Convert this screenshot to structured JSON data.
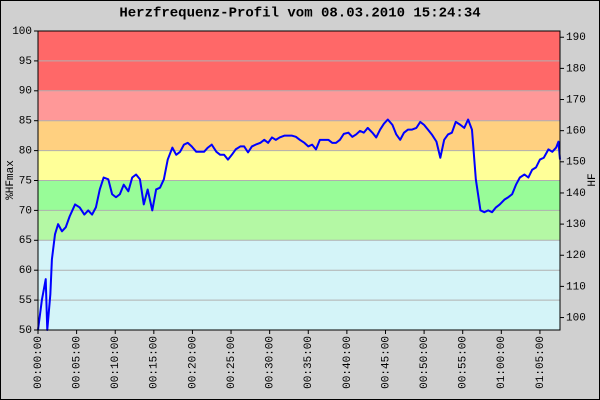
{
  "chart_data": {
    "type": "line",
    "title": "Herzfrequenz-Profil vom 08.03.2010 15:24:34",
    "y_label": "%HFmax",
    "y2_label": "HF",
    "x": [
      0,
      0.5,
      1.0,
      1.2,
      1.6,
      1.8,
      2.2,
      2.6,
      3.1,
      3.6,
      4.1,
      4.8,
      5.4,
      6.0,
      6.5,
      7.0,
      7.5,
      8.0,
      8.5,
      9.1,
      9.6,
      10.1,
      10.6,
      11.1,
      11.7,
      12.2,
      12.7,
      13.2,
      13.7,
      14.2,
      14.8,
      15.3,
      15.8,
      16.3,
      16.8,
      17.4,
      17.9,
      18.4,
      18.9,
      19.4,
      19.9,
      20.5,
      21.0,
      21.5,
      22.0,
      22.5,
      23.1,
      23.6,
      24.1,
      24.6,
      25.1,
      25.6,
      26.2,
      26.7,
      27.2,
      27.7,
      28.2,
      28.8,
      29.3,
      29.8,
      30.3,
      30.8,
      31.3,
      31.9,
      32.4,
      32.9,
      33.4,
      33.9,
      34.5,
      35.0,
      35.5,
      36.0,
      36.5,
      37.0,
      37.6,
      38.1,
      38.6,
      39.1,
      39.6,
      40.2,
      40.7,
      41.2,
      41.7,
      42.2,
      42.7,
      43.3,
      43.8,
      44.3,
      44.8,
      45.3,
      45.9,
      46.4,
      46.9,
      47.4,
      47.9,
      48.4,
      49.0,
      49.5,
      50.0,
      50.5,
      51.0,
      51.6,
      52.1,
      52.6,
      53.1,
      53.6,
      54.1,
      54.7,
      55.2,
      55.7,
      56.2,
      56.7,
      57.3,
      57.8,
      58.3,
      58.8,
      59.3,
      59.8,
      60.4,
      60.9,
      61.4,
      61.9,
      62.4,
      63.0,
      63.5,
      64.0,
      64.5,
      65.0,
      65.5,
      66.1,
      66.6,
      67.1,
      67.4,
      67.6
    ],
    "series": [
      {
        "color": "#0000ff",
        "values": [
          50,
          55,
          58.5,
          50,
          56,
          61.8,
          66,
          67.7,
          66.5,
          67.2,
          69,
          71,
          70.5,
          69.3,
          70,
          69.3,
          70.5,
          73.5,
          75.5,
          75.2,
          72.7,
          72.2,
          72.7,
          74.3,
          73.2,
          75.5,
          76,
          75.2,
          71,
          73.5,
          70,
          73.5,
          73.8,
          75.2,
          78.5,
          80.5,
          79.3,
          79.8,
          81,
          81.3,
          80.7,
          79.8,
          79.8,
          79.8,
          80.5,
          81,
          79.8,
          79.3,
          79.3,
          78.5,
          79.3,
          80.2,
          80.7,
          80.7,
          79.7,
          80.7,
          81,
          81.3,
          81.8,
          81.3,
          82.2,
          81.8,
          82.2,
          82.5,
          82.5,
          82.5,
          82.3,
          81.8,
          81.3,
          80.7,
          81,
          80.2,
          81.8,
          81.8,
          81.8,
          81.3,
          81.3,
          81.8,
          82.8,
          83,
          82.3,
          82.7,
          83.3,
          83,
          83.8,
          83,
          82.2,
          83.5,
          84.5,
          85.2,
          84.3,
          82.7,
          81.8,
          83,
          83.5,
          83.5,
          83.8,
          84.8,
          84.3,
          83.5,
          82.7,
          81.5,
          78.8,
          81.8,
          82.7,
          83,
          84.8,
          84.3,
          83.8,
          85.2,
          83.5,
          75.2,
          70,
          69.7,
          70,
          69.7,
          70.5,
          71,
          71.8,
          72.2,
          72.7,
          74.3,
          75.5,
          76,
          75.5,
          76.8,
          77.2,
          78.5,
          78.8,
          80.2,
          79.8,
          80.5,
          81.5,
          78.5
        ]
      }
    ],
    "xlim": [
      0,
      67.6
    ],
    "xticks": [
      {
        "value": 0,
        "label": "00:00:00"
      },
      {
        "value": 5,
        "label": "00:05:00"
      },
      {
        "value": 10,
        "label": "00:10:00"
      },
      {
        "value": 15,
        "label": "00:15:00"
      },
      {
        "value": 20,
        "label": "00:20:00"
      },
      {
        "value": 25,
        "label": "00:25:00"
      },
      {
        "value": 30,
        "label": "00:30:00"
      },
      {
        "value": 35,
        "label": "00:35:00"
      },
      {
        "value": 40,
        "label": "00:40:00"
      },
      {
        "value": 45,
        "label": "00:45:00"
      },
      {
        "value": 50,
        "label": "00:50:00"
      },
      {
        "value": 55,
        "label": "00:55:00"
      },
      {
        "value": 60,
        "label": "01:00:00"
      },
      {
        "value": 65,
        "label": "01:05:00"
      }
    ],
    "ylim": [
      50,
      100
    ],
    "yticks": [
      50,
      55,
      60,
      65,
      70,
      75,
      80,
      85,
      90,
      95,
      100
    ],
    "y2lim": [
      96,
      192
    ],
    "y2ticks": [
      100,
      110,
      120,
      130,
      140,
      150,
      160,
      170,
      180,
      190
    ],
    "grid": true,
    "bands": [
      {
        "from": 50,
        "to": 65,
        "color": "#d4f4f8"
      },
      {
        "from": 65,
        "to": 70,
        "color": "#b4f8a4"
      },
      {
        "from": 70,
        "to": 75,
        "color": "#98fc98"
      },
      {
        "from": 75,
        "to": 80,
        "color": "#ffff98"
      },
      {
        "from": 80,
        "to": 85,
        "color": "#ffd080"
      },
      {
        "from": 85,
        "to": 90,
        "color": "#ff9898"
      },
      {
        "from": 90,
        "to": 100,
        "color": "#ff6868"
      }
    ]
  }
}
